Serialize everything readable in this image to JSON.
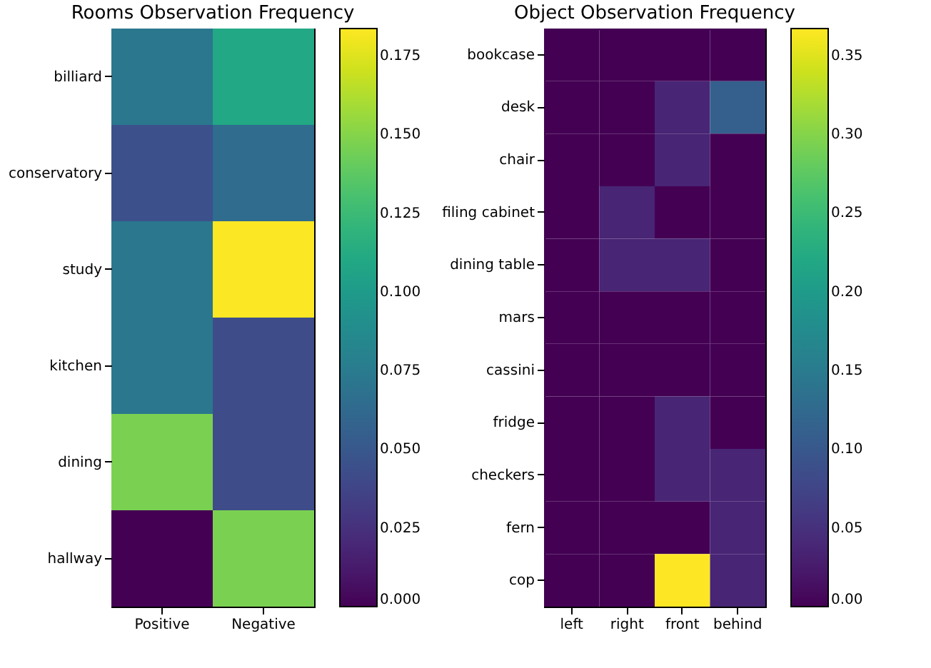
{
  "chart_data": [
    {
      "type": "heatmap",
      "title": "Rooms Observation Frequency",
      "categories": [
        "Positive",
        "Negative"
      ],
      "y_categories": [
        "billiard",
        "conservatory",
        "study",
        "kitchen",
        "dining",
        "hallway"
      ],
      "cells": [
        [
          0.073,
          0.11
        ],
        [
          0.045,
          0.064
        ],
        [
          0.073,
          0.183
        ],
        [
          0.073,
          0.042
        ],
        [
          0.147,
          0.042
        ],
        [
          0,
          0.147
        ]
      ],
      "clim": [
        0,
        0.1836
      ],
      "cticks": [
        {
          "value": 0,
          "label": "0.000"
        },
        {
          "value": 0.025,
          "label": "0.025"
        },
        {
          "value": 0.05,
          "label": "0.050"
        },
        {
          "value": 0.075,
          "label": "0.075"
        },
        {
          "value": 0.1,
          "label": "0.100"
        },
        {
          "value": 0.125,
          "label": "0.125"
        },
        {
          "value": 0.15,
          "label": "0.150"
        },
        {
          "value": 0.175,
          "label": "0.175"
        }
      ]
    },
    {
      "type": "heatmap",
      "title": "Object Observation Frequency",
      "categories": [
        "left",
        "right",
        "front",
        "behind"
      ],
      "y_categories": [
        "bookcase",
        "desk",
        "chair",
        "filing cabinet",
        "dining table",
        "mars",
        "cassini",
        "fridge",
        "checkers",
        "fern",
        "cop"
      ],
      "cells": [
        [
          0,
          0,
          0,
          0
        ],
        [
          0,
          0,
          0.037,
          0.11
        ],
        [
          0,
          0,
          0.037,
          0
        ],
        [
          0,
          0.037,
          0,
          0
        ],
        [
          0,
          0.037,
          0.037,
          0
        ],
        [
          0,
          0,
          0,
          0
        ],
        [
          0,
          0,
          0,
          0
        ],
        [
          0,
          0,
          0.037,
          0
        ],
        [
          0,
          0,
          0.037,
          0.037
        ],
        [
          0,
          0,
          0,
          0.037
        ],
        [
          0,
          0,
          0.367,
          0.037
        ]
      ],
      "clim": [
        0,
        0.367
      ],
      "cticks": [
        {
          "value": 0,
          "label": "0.00"
        },
        {
          "value": 0.05,
          "label": "0.05"
        },
        {
          "value": 0.1,
          "label": "0.10"
        },
        {
          "value": 0.15,
          "label": "0.15"
        },
        {
          "value": 0.2,
          "label": "0.20"
        },
        {
          "value": 0.25,
          "label": "0.25"
        },
        {
          "value": 0.3,
          "label": "0.30"
        },
        {
          "value": 0.35,
          "label": "0.35"
        }
      ]
    }
  ]
}
